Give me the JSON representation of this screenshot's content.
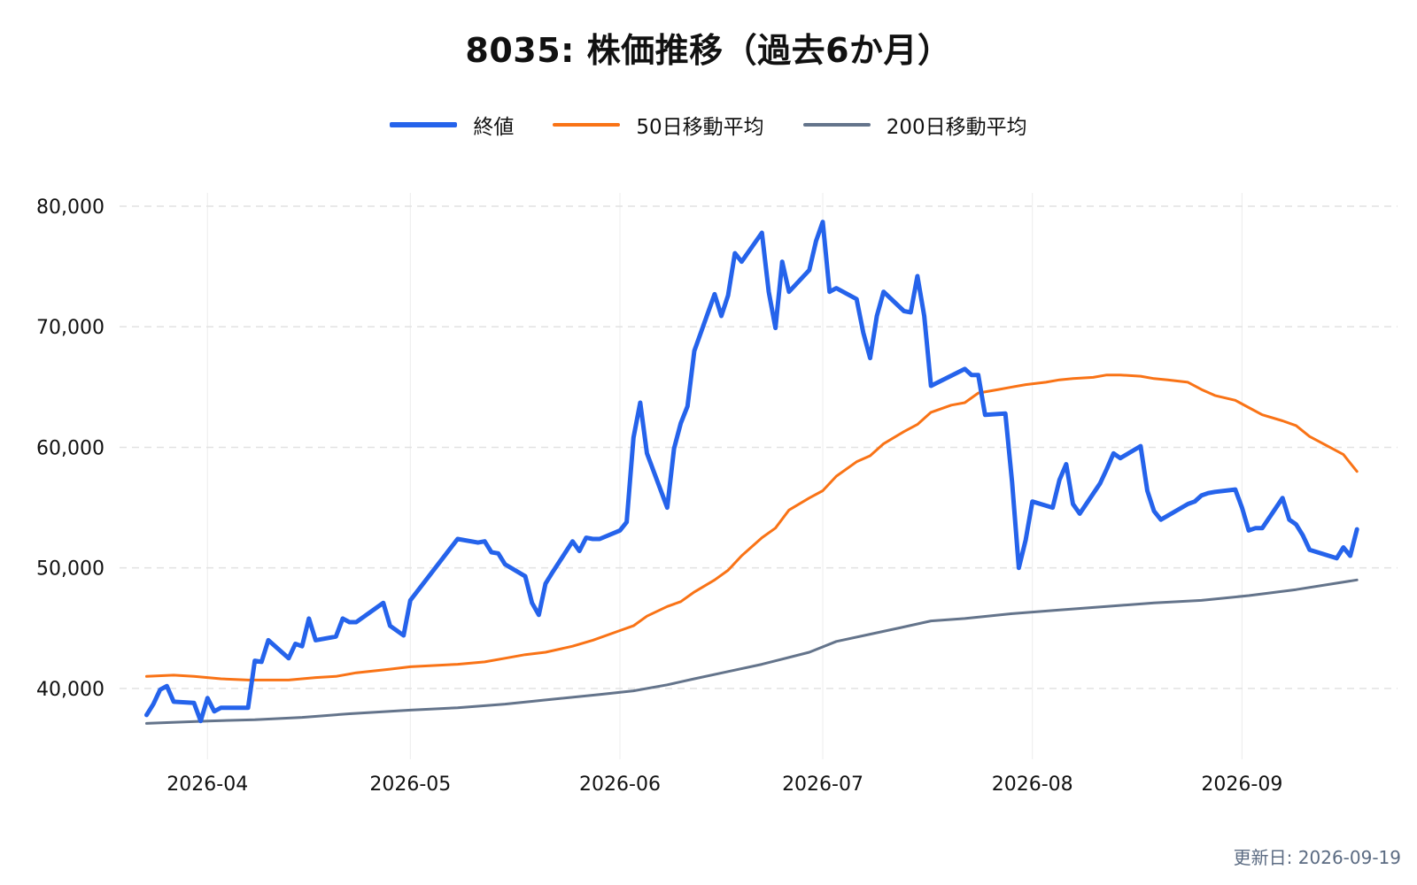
{
  "title": "8035: 株価推移（過去6か月）",
  "updated": "更新日: 2026-09-19",
  "colors": {
    "close": "#2563eb",
    "ma50": "#f97316",
    "ma200": "#64748b"
  },
  "chart_data": {
    "type": "line",
    "title": "8035: 株価推移（過去6か月）",
    "xlabel": "",
    "ylabel": "",
    "ylim": [
      35000,
      80000
    ],
    "xlim": [
      "2026-03-19",
      "2026-09-24"
    ],
    "grid": {
      "horizontal": true,
      "vertical": true,
      "style": "dashed"
    },
    "legend_position": "top-center",
    "y_ticks": [
      "40,000",
      "50,000",
      "60,000",
      "70,000",
      "80,000"
    ],
    "x_ticks": [
      "2026-04",
      "2026-05",
      "2026-06",
      "2026-07",
      "2026-08",
      "2026-09"
    ],
    "series": [
      {
        "name": "終値",
        "color": "#2563eb",
        "points": [
          [
            "2026-03-23",
            37800
          ],
          [
            "2026-03-24",
            38700
          ],
          [
            "2026-03-25",
            39900
          ],
          [
            "2026-03-26",
            40200
          ],
          [
            "2026-03-27",
            38900
          ],
          [
            "2026-03-30",
            38800
          ],
          [
            "2026-03-31",
            37300
          ],
          [
            "2026-04-01",
            39200
          ],
          [
            "2026-04-02",
            38100
          ],
          [
            "2026-04-03",
            38400
          ],
          [
            "2026-04-06",
            38400
          ],
          [
            "2026-04-07",
            38400
          ],
          [
            "2026-04-08",
            42300
          ],
          [
            "2026-04-09",
            42200
          ],
          [
            "2026-04-10",
            44000
          ],
          [
            "2026-04-13",
            42500
          ],
          [
            "2026-04-14",
            43700
          ],
          [
            "2026-04-15",
            43500
          ],
          [
            "2026-04-16",
            45800
          ],
          [
            "2026-04-17",
            44000
          ],
          [
            "2026-04-20",
            44300
          ],
          [
            "2026-04-21",
            45800
          ],
          [
            "2026-04-22",
            45500
          ],
          [
            "2026-04-23",
            45500
          ],
          [
            "2026-04-27",
            47100
          ],
          [
            "2026-04-28",
            45200
          ],
          [
            "2026-04-30",
            44400
          ],
          [
            "2026-05-01",
            47300
          ],
          [
            "2026-05-08",
            52400
          ],
          [
            "2026-05-11",
            52100
          ],
          [
            "2026-05-12",
            52200
          ],
          [
            "2026-05-13",
            51300
          ],
          [
            "2026-05-14",
            51200
          ],
          [
            "2026-05-15",
            50300
          ],
          [
            "2026-05-18",
            49300
          ],
          [
            "2026-05-19",
            47100
          ],
          [
            "2026-05-20",
            46100
          ],
          [
            "2026-05-21",
            48700
          ],
          [
            "2026-05-22",
            49600
          ],
          [
            "2026-05-25",
            52200
          ],
          [
            "2026-05-26",
            51400
          ],
          [
            "2026-05-27",
            52500
          ],
          [
            "2026-05-28",
            52400
          ],
          [
            "2026-05-29",
            52400
          ],
          [
            "2026-06-01",
            53100
          ],
          [
            "2026-06-02",
            53800
          ],
          [
            "2026-06-03",
            60800
          ],
          [
            "2026-06-04",
            63700
          ],
          [
            "2026-06-05",
            59500
          ],
          [
            "2026-06-08",
            55000
          ],
          [
            "2026-06-09",
            59900
          ],
          [
            "2026-06-10",
            62000
          ],
          [
            "2026-06-11",
            63400
          ],
          [
            "2026-06-12",
            68000
          ],
          [
            "2026-06-15",
            72700
          ],
          [
            "2026-06-16",
            70900
          ],
          [
            "2026-06-17",
            72600
          ],
          [
            "2026-06-18",
            76100
          ],
          [
            "2026-06-19",
            75400
          ],
          [
            "2026-06-22",
            77800
          ],
          [
            "2026-06-23",
            72900
          ],
          [
            "2026-06-24",
            69900
          ],
          [
            "2026-06-25",
            75400
          ],
          [
            "2026-06-26",
            72900
          ],
          [
            "2026-06-29",
            74700
          ],
          [
            "2026-06-30",
            77100
          ],
          [
            "2026-07-01",
            78700
          ],
          [
            "2026-07-02",
            72900
          ],
          [
            "2026-07-03",
            73200
          ],
          [
            "2026-07-06",
            72300
          ],
          [
            "2026-07-07",
            69500
          ],
          [
            "2026-07-08",
            67400
          ],
          [
            "2026-07-09",
            70900
          ],
          [
            "2026-07-10",
            72900
          ],
          [
            "2026-07-13",
            71300
          ],
          [
            "2026-07-14",
            71200
          ],
          [
            "2026-07-15",
            74200
          ],
          [
            "2026-07-16",
            70900
          ],
          [
            "2026-07-17",
            65100
          ],
          [
            "2026-07-22",
            66500
          ],
          [
            "2026-07-23",
            66000
          ],
          [
            "2026-07-24",
            66000
          ],
          [
            "2026-07-25",
            62700
          ],
          [
            "2026-07-28",
            62800
          ],
          [
            "2026-07-29",
            57100
          ],
          [
            "2026-07-30",
            50000
          ],
          [
            "2026-07-31",
            52300
          ],
          [
            "2026-08-01",
            55500
          ],
          [
            "2026-08-04",
            55000
          ],
          [
            "2026-08-05",
            57300
          ],
          [
            "2026-08-06",
            58600
          ],
          [
            "2026-08-07",
            55300
          ],
          [
            "2026-08-08",
            54500
          ],
          [
            "2026-08-11",
            57000
          ],
          [
            "2026-08-12",
            58200
          ],
          [
            "2026-08-13",
            59500
          ],
          [
            "2026-08-14",
            59100
          ],
          [
            "2026-08-17",
            60100
          ],
          [
            "2026-08-18",
            56400
          ],
          [
            "2026-08-19",
            54700
          ],
          [
            "2026-08-20",
            54000
          ],
          [
            "2026-08-24",
            55300
          ],
          [
            "2026-08-25",
            55500
          ],
          [
            "2026-08-26",
            56000
          ],
          [
            "2026-08-27",
            56200
          ],
          [
            "2026-08-28",
            56300
          ],
          [
            "2026-08-31",
            56500
          ],
          [
            "2026-09-01",
            55000
          ],
          [
            "2026-09-02",
            53100
          ],
          [
            "2026-09-03",
            53300
          ],
          [
            "2026-09-04",
            53300
          ],
          [
            "2026-09-07",
            55800
          ],
          [
            "2026-09-08",
            54000
          ],
          [
            "2026-09-09",
            53600
          ],
          [
            "2026-09-10",
            52700
          ],
          [
            "2026-09-11",
            51500
          ],
          [
            "2026-09-15",
            50800
          ],
          [
            "2026-09-16",
            51700
          ],
          [
            "2026-09-17",
            51000
          ],
          [
            "2026-09-18",
            53200
          ]
        ]
      },
      {
        "name": "50日移動平均",
        "color": "#f97316",
        "points": [
          [
            "2026-03-23",
            41000
          ],
          [
            "2026-03-27",
            41100
          ],
          [
            "2026-03-30",
            41000
          ],
          [
            "2026-04-01",
            40900
          ],
          [
            "2026-04-03",
            40800
          ],
          [
            "2026-04-07",
            40700
          ],
          [
            "2026-04-10",
            40700
          ],
          [
            "2026-04-13",
            40700
          ],
          [
            "2026-04-15",
            40800
          ],
          [
            "2026-04-17",
            40900
          ],
          [
            "2026-04-20",
            41000
          ],
          [
            "2026-04-23",
            41300
          ],
          [
            "2026-04-28",
            41600
          ],
          [
            "2026-05-01",
            41800
          ],
          [
            "2026-05-08",
            42000
          ],
          [
            "2026-05-12",
            42200
          ],
          [
            "2026-05-15",
            42500
          ],
          [
            "2026-05-18",
            42800
          ],
          [
            "2026-05-21",
            43000
          ],
          [
            "2026-05-25",
            43500
          ],
          [
            "2026-05-28",
            44000
          ],
          [
            "2026-06-01",
            44800
          ],
          [
            "2026-06-03",
            45200
          ],
          [
            "2026-06-05",
            46000
          ],
          [
            "2026-06-08",
            46800
          ],
          [
            "2026-06-10",
            47200
          ],
          [
            "2026-06-12",
            48000
          ],
          [
            "2026-06-15",
            49000
          ],
          [
            "2026-06-17",
            49800
          ],
          [
            "2026-06-19",
            51000
          ],
          [
            "2026-06-22",
            52500
          ],
          [
            "2026-06-24",
            53300
          ],
          [
            "2026-06-26",
            54800
          ],
          [
            "2026-06-29",
            55800
          ],
          [
            "2026-07-01",
            56400
          ],
          [
            "2026-07-03",
            57600
          ],
          [
            "2026-07-06",
            58800
          ],
          [
            "2026-07-08",
            59300
          ],
          [
            "2026-07-10",
            60300
          ],
          [
            "2026-07-13",
            61300
          ],
          [
            "2026-07-15",
            61900
          ],
          [
            "2026-07-17",
            62900
          ],
          [
            "2026-07-20",
            63500
          ],
          [
            "2026-07-22",
            63700
          ],
          [
            "2026-07-24",
            64500
          ],
          [
            "2026-07-27",
            64800
          ],
          [
            "2026-07-29",
            65000
          ],
          [
            "2026-07-31",
            65200
          ],
          [
            "2026-08-03",
            65400
          ],
          [
            "2026-08-05",
            65600
          ],
          [
            "2026-08-07",
            65700
          ],
          [
            "2026-08-10",
            65800
          ],
          [
            "2026-08-12",
            66000
          ],
          [
            "2026-08-14",
            66000
          ],
          [
            "2026-08-17",
            65900
          ],
          [
            "2026-08-19",
            65700
          ],
          [
            "2026-08-21",
            65600
          ],
          [
            "2026-08-24",
            65400
          ],
          [
            "2026-08-26",
            64800
          ],
          [
            "2026-08-28",
            64300
          ],
          [
            "2026-08-31",
            63900
          ],
          [
            "2026-09-02",
            63300
          ],
          [
            "2026-09-04",
            62700
          ],
          [
            "2026-09-07",
            62200
          ],
          [
            "2026-09-09",
            61800
          ],
          [
            "2026-09-11",
            60900
          ],
          [
            "2026-09-14",
            60000
          ],
          [
            "2026-09-16",
            59400
          ],
          [
            "2026-09-18",
            58000
          ]
        ]
      },
      {
        "name": "200日移動平均",
        "color": "#64748b",
        "points": [
          [
            "2026-03-23",
            37100
          ],
          [
            "2026-04-01",
            37300
          ],
          [
            "2026-04-08",
            37400
          ],
          [
            "2026-04-15",
            37600
          ],
          [
            "2026-04-22",
            37900
          ],
          [
            "2026-05-01",
            38200
          ],
          [
            "2026-05-08",
            38400
          ],
          [
            "2026-05-15",
            38700
          ],
          [
            "2026-05-22",
            39100
          ],
          [
            "2026-05-29",
            39500
          ],
          [
            "2026-06-03",
            39800
          ],
          [
            "2026-06-08",
            40300
          ],
          [
            "2026-06-12",
            40800
          ],
          [
            "2026-06-17",
            41400
          ],
          [
            "2026-06-22",
            42000
          ],
          [
            "2026-06-29",
            43000
          ],
          [
            "2026-07-03",
            43900
          ],
          [
            "2026-07-08",
            44500
          ],
          [
            "2026-07-13",
            45100
          ],
          [
            "2026-07-17",
            45600
          ],
          [
            "2026-07-22",
            45800
          ],
          [
            "2026-07-29",
            46200
          ],
          [
            "2026-08-05",
            46500
          ],
          [
            "2026-08-12",
            46800
          ],
          [
            "2026-08-19",
            47100
          ],
          [
            "2026-08-26",
            47300
          ],
          [
            "2026-09-02",
            47700
          ],
          [
            "2026-09-09",
            48200
          ],
          [
            "2026-09-18",
            49000
          ]
        ]
      }
    ]
  }
}
